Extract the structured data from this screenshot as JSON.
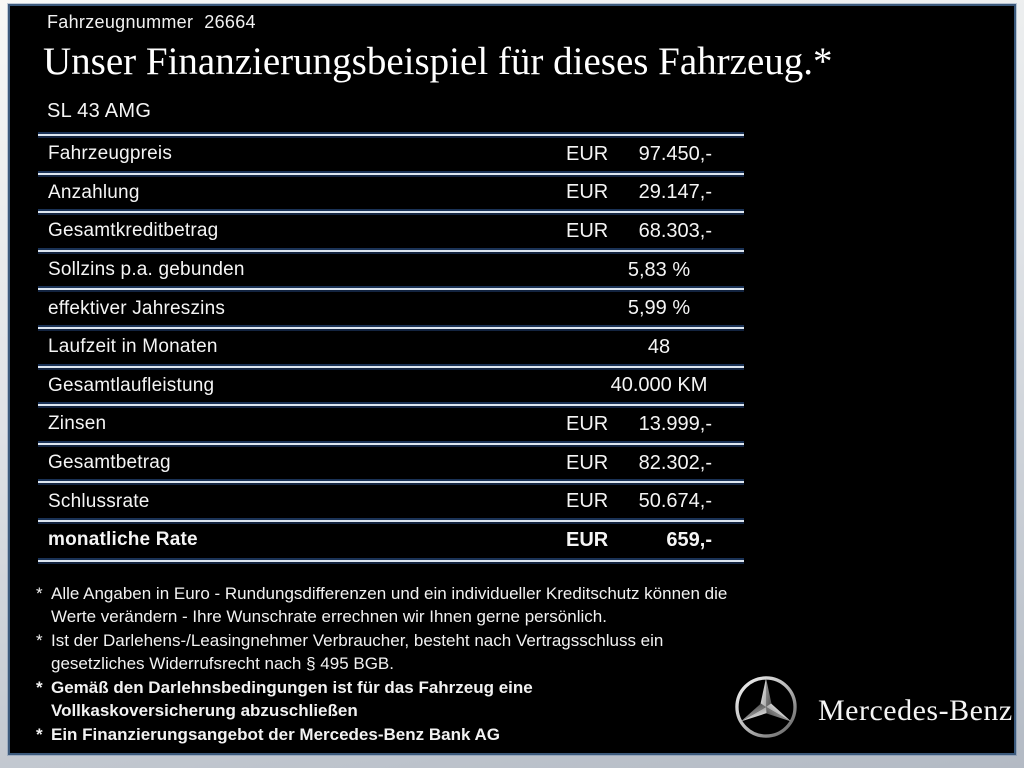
{
  "header": {
    "vehicle_number_label": "Fahrzeugnummer",
    "vehicle_number": "26664",
    "title": "Unser Finanzierungsbeispiel für dieses Fahrzeug.*",
    "model": "SL 43 AMG"
  },
  "table": {
    "rows": [
      {
        "label": "Fahrzeugpreis",
        "currency": "EUR",
        "value": "97.450,-",
        "bold": false
      },
      {
        "label": "Anzahlung",
        "currency": "EUR",
        "value": "29.147,-",
        "bold": false
      },
      {
        "label": "Gesamtkreditbetrag",
        "currency": "EUR",
        "value": "68.303,-",
        "bold": false
      },
      {
        "label": "Sollzins p.a. gebunden",
        "currency": "",
        "value": "5,83 %",
        "bold": false
      },
      {
        "label": "effektiver Jahreszins",
        "currency": "",
        "value": "5,99 %",
        "bold": false
      },
      {
        "label": "Laufzeit in Monaten",
        "currency": "",
        "value": "48",
        "bold": false
      },
      {
        "label": "Gesamtlaufleistung",
        "currency": "",
        "value": "40.000 KM",
        "bold": false
      },
      {
        "label": "Zinsen",
        "currency": "EUR",
        "value": "13.999,-",
        "bold": false
      },
      {
        "label": "Gesamtbetrag",
        "currency": "EUR",
        "value": "82.302,-",
        "bold": false
      },
      {
        "label": "Schlussrate",
        "currency": "EUR",
        "value": "50.674,-",
        "bold": false
      },
      {
        "label": "monatliche Rate",
        "currency": "EUR",
        "value": "659,-",
        "bold": true
      }
    ]
  },
  "footnotes": [
    {
      "marker": "*",
      "bold": false,
      "text": "Alle Angaben in Euro - Rundungsdifferenzen und ein individueller Kreditschutz können die\nWerte verändern - Ihre Wunschrate errechnen wir Ihnen gerne persönlich."
    },
    {
      "marker": "*",
      "bold": false,
      "text": "Ist der Darlehens-/Leasingnehmer Verbraucher, besteht nach Vertragsschluss ein\ngesetzliches Widerrufsrecht nach § 495 BGB."
    },
    {
      "marker": "*",
      "bold": true,
      "text": "Gemäß den Darlehnsbedingungen ist für das Fahrzeug eine\nVollkaskoversicherung abzuschließen"
    },
    {
      "marker": "*",
      "bold": true,
      "text": "Ein Finanzierungsangebot der Mercedes-Benz Bank AG"
    }
  ],
  "brand": {
    "name": "Mercedes-Benz",
    "logo_icon": "mercedes-star-icon"
  },
  "colors": {
    "content_background": "#000000",
    "text": "#ffffff",
    "frame_border": "#3c5a7c",
    "separator_light": "#dde6f0",
    "separator_shadow": "#213e6c",
    "page_background_top": "#f7f8f6",
    "page_background_bottom": "#b3bac4"
  }
}
